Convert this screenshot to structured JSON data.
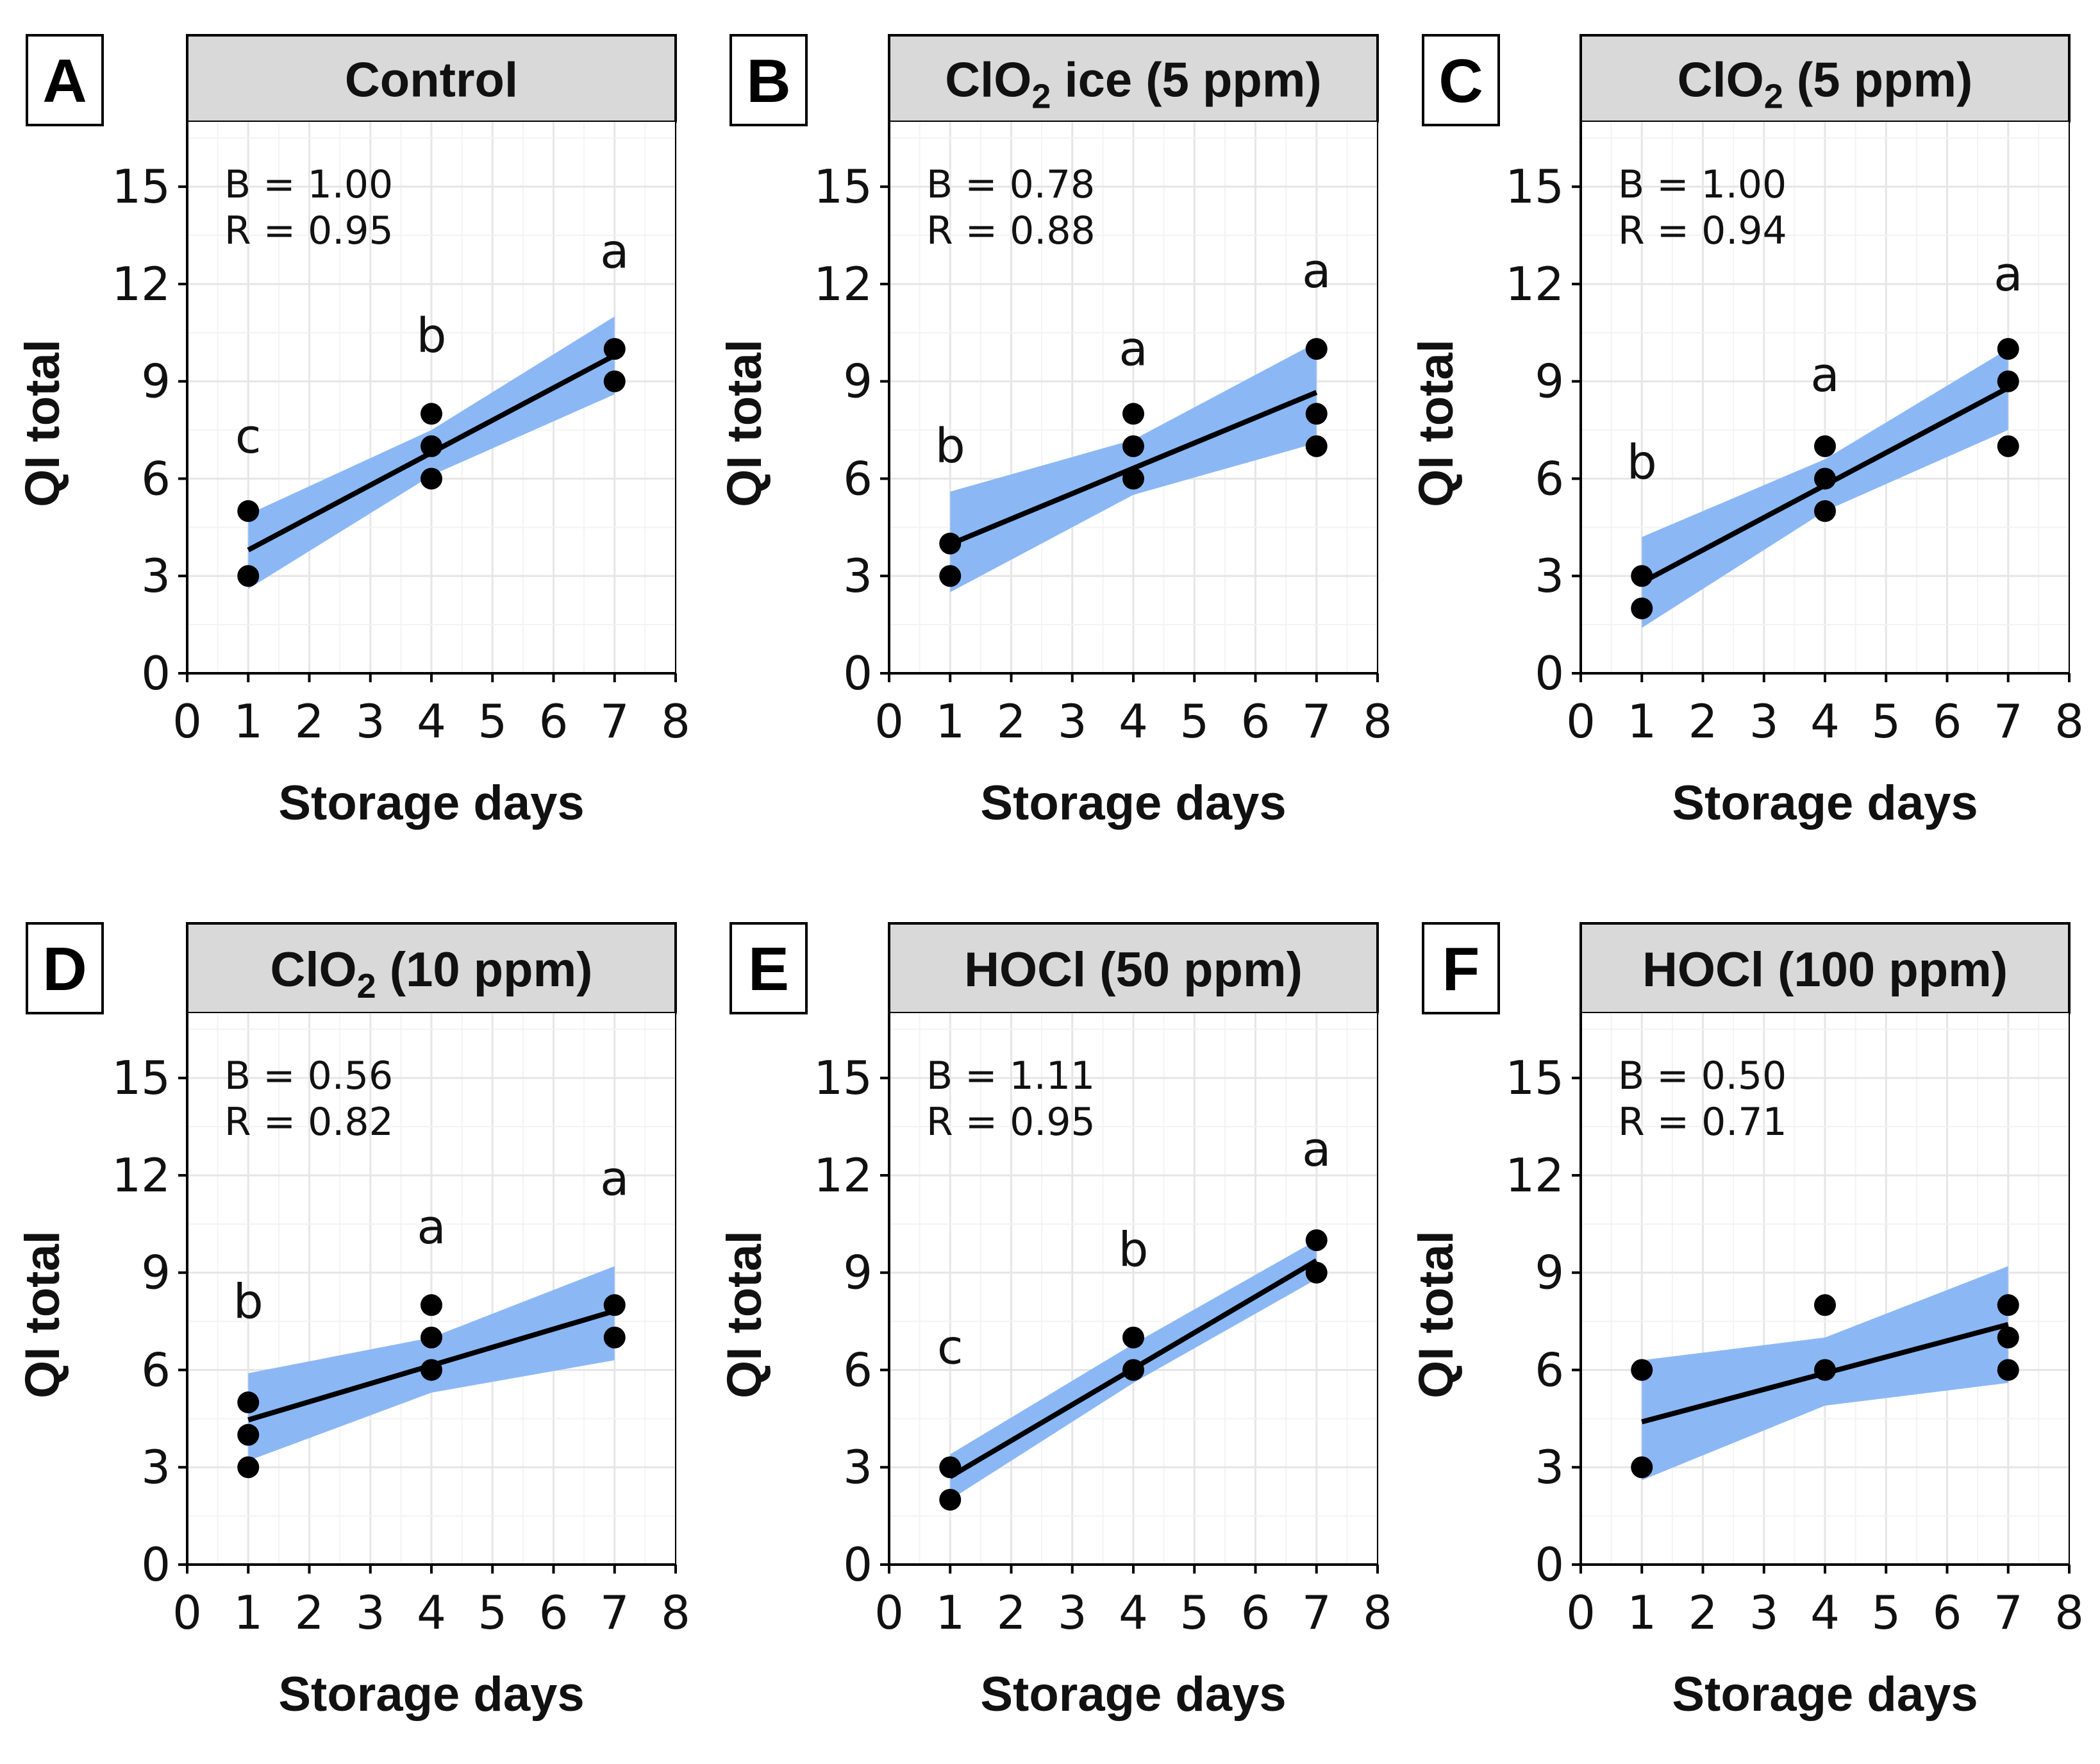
{
  "chart_data": [
    {
      "type": "scatter",
      "panel_label": "A",
      "title_parts": [
        {
          "t": "Control"
        }
      ],
      "xlabel": "Storage days",
      "ylabel": "QI total",
      "xlim": [
        0,
        8
      ],
      "ylim": [
        0,
        17
      ],
      "xticks": [
        0,
        1,
        2,
        3,
        4,
        5,
        6,
        7,
        8
      ],
      "yticks": [
        0,
        3,
        6,
        9,
        12,
        15
      ],
      "grid": true,
      "stats": [
        "B = 1.00",
        "R = 0.95"
      ],
      "points": [
        [
          1,
          5
        ],
        [
          1,
          3
        ],
        [
          4,
          8
        ],
        [
          4,
          7
        ],
        [
          4,
          6
        ],
        [
          7,
          10
        ],
        [
          7,
          9
        ]
      ],
      "fit": {
        "slope": 1.0,
        "intercept": 2.8
      },
      "ci": {
        "x": [
          1,
          4,
          7
        ],
        "lower": [
          2.6,
          6.1,
          8.6
        ],
        "upper": [
          4.9,
          7.5,
          11.0
        ]
      },
      "letters": [
        {
          "x": 1,
          "y": 6.8,
          "text": "c"
        },
        {
          "x": 4,
          "y": 9.9,
          "text": "b"
        },
        {
          "x": 7,
          "y": 12.5,
          "text": "a"
        }
      ],
      "point_color": "#000000",
      "line_color": "#000000",
      "band_color": "#8bb8f5"
    },
    {
      "type": "scatter",
      "panel_label": "B",
      "title_parts": [
        {
          "t": "ClO"
        },
        {
          "t": "2",
          "sub": true
        },
        {
          "t": " ice (5 ppm)"
        }
      ],
      "xlabel": "Storage days",
      "ylabel": "QI total",
      "xlim": [
        0,
        8
      ],
      "ylim": [
        0,
        17
      ],
      "xticks": [
        0,
        1,
        2,
        3,
        4,
        5,
        6,
        7,
        8
      ],
      "yticks": [
        0,
        3,
        6,
        9,
        12,
        15
      ],
      "grid": true,
      "stats": [
        "B = 0.78",
        "R = 0.88"
      ],
      "points": [
        [
          1,
          4
        ],
        [
          1,
          3
        ],
        [
          4,
          8
        ],
        [
          4,
          7
        ],
        [
          4,
          6
        ],
        [
          7,
          10
        ],
        [
          7,
          8
        ],
        [
          7,
          7
        ]
      ],
      "fit": {
        "slope": 0.78,
        "intercept": 3.2
      },
      "ci": {
        "x": [
          1,
          4,
          7
        ],
        "lower": [
          2.5,
          5.5,
          7.1
        ],
        "upper": [
          5.6,
          7.2,
          10.2
        ]
      },
      "letters": [
        {
          "x": 1,
          "y": 6.5,
          "text": "b"
        },
        {
          "x": 4,
          "y": 9.5,
          "text": "a"
        },
        {
          "x": 7,
          "y": 11.9,
          "text": "a"
        }
      ],
      "point_color": "#000000",
      "line_color": "#000000",
      "band_color": "#8bb8f5"
    },
    {
      "type": "scatter",
      "panel_label": "C",
      "title_parts": [
        {
          "t": "ClO"
        },
        {
          "t": "2",
          "sub": true
        },
        {
          "t": " (5 ppm)"
        }
      ],
      "xlabel": "Storage days",
      "ylabel": "QI total",
      "xlim": [
        0,
        8
      ],
      "ylim": [
        0,
        17
      ],
      "xticks": [
        0,
        1,
        2,
        3,
        4,
        5,
        6,
        7,
        8
      ],
      "yticks": [
        0,
        3,
        6,
        9,
        12,
        15
      ],
      "grid": true,
      "stats": [
        "B = 1.00",
        "R = 0.94"
      ],
      "points": [
        [
          1,
          3
        ],
        [
          1,
          2
        ],
        [
          4,
          7
        ],
        [
          4,
          6
        ],
        [
          4,
          5
        ],
        [
          7,
          10
        ],
        [
          7,
          9
        ],
        [
          7,
          7
        ]
      ],
      "fit": {
        "slope": 1.0,
        "intercept": 1.8
      },
      "ci": {
        "x": [
          1,
          4,
          7
        ],
        "lower": [
          1.4,
          5.0,
          7.5
        ],
        "upper": [
          4.2,
          6.6,
          10.0
        ]
      },
      "letters": [
        {
          "x": 1,
          "y": 6.0,
          "text": "b"
        },
        {
          "x": 4,
          "y": 8.7,
          "text": "a"
        },
        {
          "x": 7,
          "y": 11.8,
          "text": "a"
        }
      ],
      "point_color": "#000000",
      "line_color": "#000000",
      "band_color": "#8bb8f5"
    },
    {
      "type": "scatter",
      "panel_label": "D",
      "title_parts": [
        {
          "t": "ClO"
        },
        {
          "t": "2",
          "sub": true
        },
        {
          "t": " (10 ppm)"
        }
      ],
      "xlabel": "Storage days",
      "ylabel": "QI total",
      "xlim": [
        0,
        8
      ],
      "ylim": [
        0,
        17
      ],
      "xticks": [
        0,
        1,
        2,
        3,
        4,
        5,
        6,
        7,
        8
      ],
      "yticks": [
        0,
        3,
        6,
        9,
        12,
        15
      ],
      "grid": true,
      "stats": [
        "B = 0.56",
        "R = 0.82"
      ],
      "points": [
        [
          1,
          5
        ],
        [
          1,
          4
        ],
        [
          1,
          3
        ],
        [
          4,
          8
        ],
        [
          4,
          7
        ],
        [
          4,
          6
        ],
        [
          7,
          8
        ],
        [
          7,
          7
        ]
      ],
      "fit": {
        "slope": 0.56,
        "intercept": 3.9
      },
      "ci": {
        "x": [
          1,
          4,
          7
        ],
        "lower": [
          3.2,
          5.3,
          6.3
        ],
        "upper": [
          5.9,
          7.0,
          9.2
        ]
      },
      "letters": [
        {
          "x": 1,
          "y": 7.6,
          "text": "b"
        },
        {
          "x": 4,
          "y": 9.9,
          "text": "a"
        },
        {
          "x": 7,
          "y": 11.4,
          "text": "a"
        }
      ],
      "point_color": "#000000",
      "line_color": "#000000",
      "band_color": "#8bb8f5"
    },
    {
      "type": "scatter",
      "panel_label": "E",
      "title_parts": [
        {
          "t": "HOCl (50 ppm)"
        }
      ],
      "xlabel": "Storage days",
      "ylabel": "QI total",
      "xlim": [
        0,
        8
      ],
      "ylim": [
        0,
        17
      ],
      "xticks": [
        0,
        1,
        2,
        3,
        4,
        5,
        6,
        7,
        8
      ],
      "yticks": [
        0,
        3,
        6,
        9,
        12,
        15
      ],
      "grid": true,
      "stats": [
        "B = 1.11",
        "R = 0.95"
      ],
      "points": [
        [
          1,
          3
        ],
        [
          1,
          2
        ],
        [
          4,
          7
        ],
        [
          4,
          6
        ],
        [
          7,
          10
        ],
        [
          7,
          9
        ]
      ],
      "fit": {
        "slope": 1.11,
        "intercept": 1.6
      },
      "ci": {
        "x": [
          1,
          4,
          7
        ],
        "lower": [
          2.0,
          5.6,
          8.8
        ],
        "upper": [
          3.4,
          6.8,
          10.0
        ]
      },
      "letters": [
        {
          "x": 1,
          "y": 6.2,
          "text": "c"
        },
        {
          "x": 4,
          "y": 9.2,
          "text": "b"
        },
        {
          "x": 7,
          "y": 12.3,
          "text": "a"
        }
      ],
      "point_color": "#000000",
      "line_color": "#000000",
      "band_color": "#8bb8f5"
    },
    {
      "type": "scatter",
      "panel_label": "F",
      "title_parts": [
        {
          "t": "HOCl (100 ppm)"
        }
      ],
      "xlabel": "Storage days",
      "ylabel": "QI total",
      "xlim": [
        0,
        8
      ],
      "ylim": [
        0,
        17
      ],
      "xticks": [
        0,
        1,
        2,
        3,
        4,
        5,
        6,
        7,
        8
      ],
      "yticks": [
        0,
        3,
        6,
        9,
        12,
        15
      ],
      "grid": true,
      "stats": [
        "B = 0.50",
        "R = 0.71"
      ],
      "points": [
        [
          1,
          6
        ],
        [
          1,
          3
        ],
        [
          4,
          8
        ],
        [
          4,
          6
        ],
        [
          7,
          8
        ],
        [
          7,
          7
        ],
        [
          7,
          6
        ]
      ],
      "fit": {
        "slope": 0.5,
        "intercept": 3.9
      },
      "ci": {
        "x": [
          1,
          4,
          7
        ],
        "lower": [
          2.6,
          4.9,
          5.6
        ],
        "upper": [
          6.3,
          7.0,
          9.2
        ]
      },
      "letters": [],
      "point_color": "#000000",
      "line_color": "#000000",
      "band_color": "#8bb8f5"
    }
  ]
}
